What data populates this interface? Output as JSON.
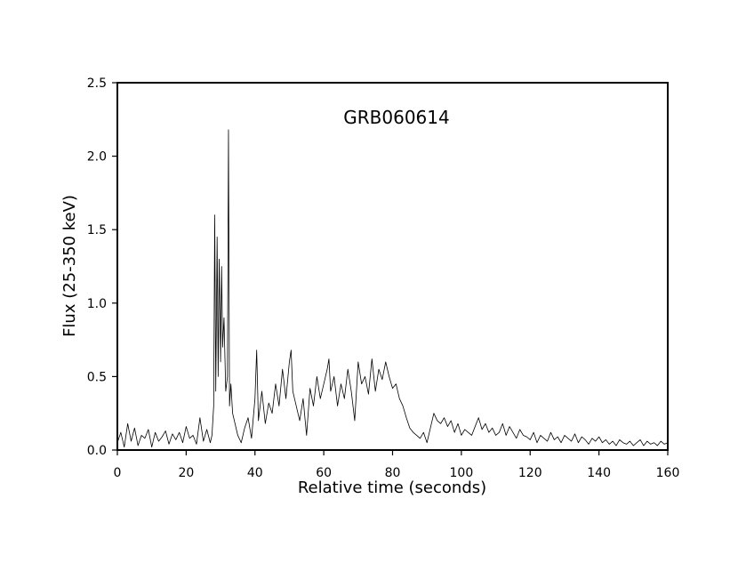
{
  "chart_data": {
    "type": "line",
    "title": "GRB060614",
    "xlabel": "Relative time (seconds)",
    "ylabel": "Flux (25-350 keV)",
    "xlim": [
      0,
      160
    ],
    "ylim": [
      0,
      2.5
    ],
    "xticks": [
      0,
      20,
      40,
      60,
      80,
      100,
      120,
      140,
      160
    ],
    "yticks": [
      0.0,
      0.5,
      1.0,
      1.5,
      2.0,
      2.5
    ],
    "ytick_labels": [
      "0.0",
      "0.5",
      "1.0",
      "1.5",
      "2.0",
      "2.5"
    ],
    "grid": false,
    "series": [
      {
        "color": "#000000",
        "x": [
          0,
          1,
          2,
          3,
          4,
          5,
          6,
          7,
          8,
          9,
          10,
          11,
          12,
          13,
          14,
          15,
          16,
          17,
          18,
          19,
          20,
          21,
          22,
          23,
          24,
          25,
          26,
          27,
          27.5,
          28,
          28.3,
          28.6,
          29,
          29.3,
          29.6,
          30,
          30.3,
          30.6,
          31,
          31.5,
          32,
          32.3,
          32.6,
          33,
          33.5,
          34,
          35,
          36,
          37,
          38,
          39,
          40,
          40.5,
          41,
          42,
          43,
          44,
          45,
          46,
          47,
          48,
          49,
          50,
          50.5,
          51,
          52,
          53,
          54,
          55,
          56,
          57,
          58,
          59,
          60,
          61,
          61.5,
          62,
          63,
          64,
          65,
          66,
          67,
          68,
          69,
          70,
          71,
          72,
          73,
          74,
          75,
          76,
          77,
          78,
          79,
          80,
          81,
          82,
          83,
          84,
          85,
          86,
          87,
          88,
          89,
          90,
          91,
          92,
          93,
          94,
          95,
          96,
          97,
          98,
          99,
          100,
          101,
          102,
          103,
          104,
          105,
          106,
          107,
          108,
          109,
          110,
          111,
          112,
          113,
          114,
          115,
          116,
          117,
          118,
          119,
          120,
          121,
          122,
          123,
          124,
          125,
          126,
          127,
          128,
          129,
          130,
          131,
          132,
          133,
          134,
          135,
          136,
          137,
          138,
          139,
          140,
          141,
          142,
          143,
          144,
          145,
          146,
          147,
          148,
          149,
          150,
          151,
          152,
          153,
          154,
          155,
          156,
          157,
          158,
          159,
          160
        ],
        "values": [
          0.05,
          0.12,
          0.02,
          0.18,
          0.06,
          0.15,
          0.03,
          0.1,
          0.08,
          0.14,
          0.02,
          0.12,
          0.06,
          0.09,
          0.13,
          0.04,
          0.11,
          0.07,
          0.12,
          0.05,
          0.16,
          0.08,
          0.1,
          0.04,
          0.22,
          0.06,
          0.14,
          0.05,
          0.1,
          0.3,
          1.6,
          0.4,
          1.45,
          0.5,
          1.3,
          0.6,
          1.25,
          0.7,
          0.9,
          0.4,
          0.5,
          2.18,
          0.3,
          0.45,
          0.25,
          0.2,
          0.1,
          0.05,
          0.15,
          0.22,
          0.08,
          0.35,
          0.68,
          0.2,
          0.4,
          0.18,
          0.32,
          0.25,
          0.45,
          0.3,
          0.55,
          0.35,
          0.6,
          0.68,
          0.4,
          0.3,
          0.2,
          0.35,
          0.1,
          0.42,
          0.3,
          0.5,
          0.35,
          0.45,
          0.55,
          0.62,
          0.4,
          0.5,
          0.3,
          0.45,
          0.35,
          0.55,
          0.4,
          0.2,
          0.6,
          0.45,
          0.5,
          0.38,
          0.62,
          0.4,
          0.55,
          0.48,
          0.6,
          0.5,
          0.42,
          0.45,
          0.35,
          0.3,
          0.22,
          0.15,
          0.12,
          0.1,
          0.08,
          0.12,
          0.05,
          0.15,
          0.25,
          0.2,
          0.18,
          0.22,
          0.16,
          0.2,
          0.12,
          0.18,
          0.1,
          0.14,
          0.12,
          0.1,
          0.16,
          0.22,
          0.14,
          0.18,
          0.12,
          0.15,
          0.1,
          0.12,
          0.18,
          0.1,
          0.16,
          0.12,
          0.08,
          0.14,
          0.1,
          0.09,
          0.07,
          0.12,
          0.05,
          0.1,
          0.08,
          0.06,
          0.12,
          0.07,
          0.09,
          0.05,
          0.1,
          0.08,
          0.06,
          0.11,
          0.05,
          0.09,
          0.07,
          0.04,
          0.08,
          0.06,
          0.09,
          0.05,
          0.07,
          0.04,
          0.06,
          0.03,
          0.07,
          0.05,
          0.04,
          0.06,
          0.03,
          0.05,
          0.07,
          0.03,
          0.06,
          0.04,
          0.05,
          0.03,
          0.06,
          0.04,
          0.05
        ]
      }
    ]
  }
}
